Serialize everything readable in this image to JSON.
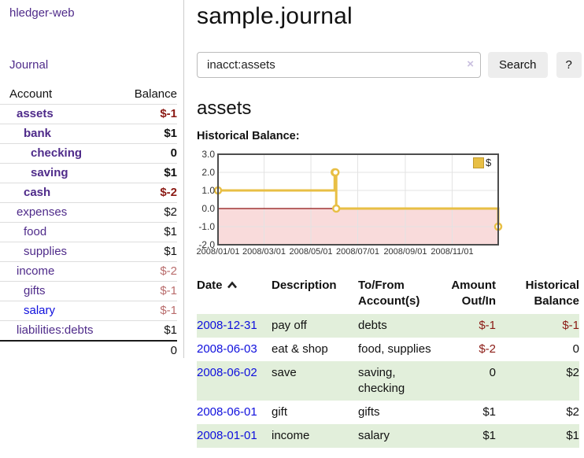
{
  "app": {
    "title": "hledger-web"
  },
  "sidebar": {
    "nav": [
      {
        "label": "Journal"
      }
    ],
    "accounts_table": {
      "headers": {
        "account": "Account",
        "balance": "Balance"
      },
      "rows": [
        {
          "name": "assets",
          "indent": 1,
          "bold": true,
          "link_color": "purple",
          "balance": "$-1",
          "balance_tone": "strong-negative"
        },
        {
          "name": "bank",
          "indent": 2,
          "bold": true,
          "link_color": "purple",
          "balance": "$1",
          "balance_tone": "normal"
        },
        {
          "name": "checking",
          "indent": 3,
          "bold": true,
          "link_color": "purple",
          "balance": "0",
          "balance_tone": "normal"
        },
        {
          "name": "saving",
          "indent": 3,
          "bold": true,
          "link_color": "purple",
          "balance": "$1",
          "balance_tone": "normal"
        },
        {
          "name": "cash",
          "indent": 2,
          "bold": true,
          "link_color": "purple",
          "balance": "$-2",
          "balance_tone": "strong-negative"
        },
        {
          "name": "expenses",
          "indent": 1,
          "bold": false,
          "link_color": "purple",
          "balance": "$2",
          "balance_tone": "normal"
        },
        {
          "name": "food",
          "indent": 2,
          "bold": false,
          "link_color": "purple",
          "balance": "$1",
          "balance_tone": "normal"
        },
        {
          "name": "supplies",
          "indent": 2,
          "bold": false,
          "link_color": "purple",
          "balance": "$1",
          "balance_tone": "normal"
        },
        {
          "name": "income",
          "indent": 1,
          "bold": false,
          "link_color": "purple",
          "balance": "$-2",
          "balance_tone": "soft-negative"
        },
        {
          "name": "gifts",
          "indent": 2,
          "bold": false,
          "link_color": "purple",
          "balance": "$-1",
          "balance_tone": "soft-negative"
        },
        {
          "name": "salary",
          "indent": 2,
          "bold": false,
          "link_color": "blue",
          "balance": "$-1",
          "balance_tone": "soft-negative"
        },
        {
          "name": "liabilities:debts",
          "indent": 1,
          "bold": false,
          "link_color": "purple",
          "balance": "$1",
          "balance_tone": "normal"
        }
      ],
      "total": "0"
    }
  },
  "header": {
    "title": "sample.journal"
  },
  "search": {
    "value": "inacct:assets",
    "clear_icon": "×",
    "button": "Search",
    "help_button": "?"
  },
  "account_page": {
    "heading": "assets",
    "chart_label": "Historical Balance:"
  },
  "chart_data": {
    "type": "line",
    "step": true,
    "title": "Historical Balance:",
    "series": [
      {
        "name": "$",
        "x": [
          "2008-01-01",
          "2008-06-01",
          "2008-06-02",
          "2008-06-03",
          "2008-12-31"
        ],
        "values": [
          1,
          2,
          2,
          0,
          -1
        ]
      }
    ],
    "x_range": [
      "2008-01-01",
      "2008-12-31"
    ],
    "ylim": [
      -2,
      3
    ],
    "yticks": [
      "3.0",
      "2.0",
      "1.0",
      "0.0",
      "-1.0",
      "-2.0"
    ],
    "xticks": [
      "2008/01/01",
      "2008/03/01",
      "2008/05/01",
      "2008/07/01",
      "2008/09/01",
      "2008/11/01"
    ],
    "grid": true,
    "legend": {
      "label": "$",
      "position": "top-right"
    },
    "colors": {
      "line": "#e8bf45",
      "marker_fill": "#ffffff",
      "negative_fill": "#f9dbdb",
      "zero_line": "#8f1010",
      "grid": "#e3e3e3",
      "border": "#4d4d4d"
    }
  },
  "transactions": {
    "headers": {
      "date": "Date",
      "description": "Description",
      "accounts": "To/From Account(s)",
      "amount": "Amount Out/In",
      "balance": "Historical Balance"
    },
    "rows": [
      {
        "date": "2008-12-31",
        "description": "pay off",
        "accounts": "debts",
        "amount": "$-1",
        "amount_negative": true,
        "balance": "$-1",
        "balance_negative": true
      },
      {
        "date": "2008-06-03",
        "description": "eat & shop",
        "accounts": "food, supplies",
        "amount": "$-2",
        "amount_negative": true,
        "balance": "0",
        "balance_negative": false
      },
      {
        "date": "2008-06-02",
        "description": "save",
        "accounts": "saving, checking",
        "amount": "0",
        "amount_negative": false,
        "balance": "$2",
        "balance_negative": false
      },
      {
        "date": "2008-06-01",
        "description": "gift",
        "accounts": "gifts",
        "amount": "$1",
        "amount_negative": false,
        "balance": "$2",
        "balance_negative": false
      },
      {
        "date": "2008-01-01",
        "description": "income",
        "accounts": "salary",
        "amount": "$1",
        "amount_negative": false,
        "balance": "$1",
        "balance_negative": false
      }
    ]
  }
}
